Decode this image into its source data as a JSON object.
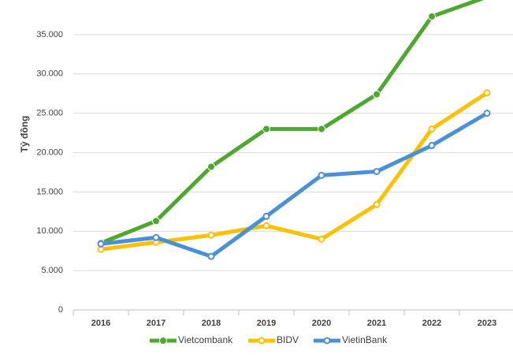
{
  "chart_data": {
    "type": "line",
    "y_label": "Tỷ đồng",
    "categories": [
      "2016",
      "2017",
      "2018",
      "2019",
      "2020",
      "2021",
      "2022",
      "2023"
    ],
    "series": [
      {
        "name": "Vietcombank",
        "color": "#4ea72e",
        "values": [
          8500,
          11300,
          18200,
          23000,
          23000,
          27400,
          37300,
          39800
        ]
      },
      {
        "name": "BIDV",
        "color": "#ffc000",
        "values": [
          7700,
          8600,
          9500,
          10700,
          9000,
          13400,
          23000,
          27600
        ]
      },
      {
        "name": "VietinBank",
        "color": "#4a90d9",
        "values": [
          8400,
          9200,
          6800,
          11900,
          17100,
          17600,
          20900,
          25000
        ]
      }
    ],
    "ylim": [
      0,
      40000
    ],
    "yticks": [
      0,
      {
        "value": 5000,
        "label": "5.000"
      },
      {
        "value": 10000,
        "label": "10.000"
      },
      {
        "value": 15000,
        "label": "15.000"
      },
      {
        "value": 20000,
        "label": "20.000"
      },
      {
        "value": 25000,
        "label": "25.000"
      },
      {
        "value": 30000,
        "label": "30.000"
      },
      {
        "value": 35000,
        "label": "35.000"
      }
    ],
    "grid": true
  }
}
